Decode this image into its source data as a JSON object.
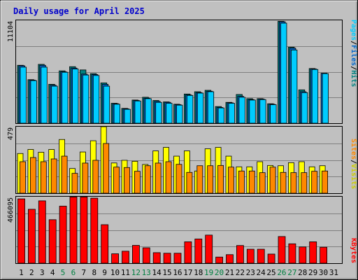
{
  "title": "Daily usage for April 2025",
  "colors": {
    "background": "#c0c0c0",
    "title": "#0000cc",
    "pages": "#00ccff",
    "files": "#0066cc",
    "hits": "#008080",
    "sites": "#ff8800",
    "visits": "#ffff00",
    "kbytes": "#ff0000",
    "weekend": "#008040",
    "weekday": "#000000"
  },
  "legend": {
    "top": [
      {
        "text": "Pages",
        "color": "#00ccff"
      },
      {
        "text": "/",
        "color": "#000000"
      },
      {
        "text": "Files",
        "color": "#0066cc"
      },
      {
        "text": "/",
        "color": "#000000"
      },
      {
        "text": "Hits",
        "color": "#008080"
      }
    ],
    "middle": [
      {
        "text": "Sites",
        "color": "#ff8800"
      },
      {
        "text": "/",
        "color": "#000000"
      },
      {
        "text": "Visits",
        "color": "#cccc00"
      }
    ],
    "bottom": [
      {
        "text": "KBytes",
        "color": "#ff0000"
      }
    ]
  },
  "chart_data": [
    {
      "type": "bar",
      "title": "Daily usage for April 2025",
      "panel": "top",
      "ymax_label": "11104",
      "ylim": [
        0,
        11104
      ],
      "categories": [
        "1",
        "2",
        "3",
        "4",
        "5",
        "6",
        "7",
        "8",
        "9",
        "10",
        "11",
        "12",
        "13",
        "14",
        "15",
        "16",
        "17",
        "18",
        "19",
        "20",
        "21",
        "22",
        "23",
        "24",
        "25",
        "26",
        "27",
        "28",
        "29",
        "30",
        "31"
      ],
      "weekend_days": [
        "5",
        "6",
        "12",
        "13",
        "19",
        "20",
        "26",
        "27"
      ],
      "series": [
        {
          "name": "Hits",
          "values": [
            6250,
            4700,
            6350,
            4200,
            5650,
            6100,
            5750,
            5350,
            4350,
            2150,
            1600,
            2500,
            2800,
            2450,
            2300,
            2050,
            3150,
            3400,
            3550,
            1800,
            2250,
            3100,
            2650,
            2650,
            2100,
            11000,
            8200,
            3600,
            5900,
            0,
            0
          ]
        },
        {
          "name": "Files",
          "values": [
            6200,
            4650,
            6250,
            4100,
            5550,
            5950,
            5300,
            5250,
            4200,
            2100,
            1550,
            2450,
            2700,
            2350,
            2250,
            2000,
            3050,
            3300,
            3450,
            1700,
            2200,
            2900,
            2550,
            2600,
            2050,
            10950,
            8100,
            3400,
            5850,
            5400,
            0
          ]
        },
        {
          "name": "Pages",
          "values": [
            6050,
            4600,
            6050,
            4000,
            5500,
            5850,
            5200,
            5150,
            4000,
            2050,
            1500,
            2400,
            2650,
            2250,
            2150,
            1950,
            3000,
            3250,
            3400,
            1650,
            2150,
            2800,
            2500,
            2550,
            2000,
            10800,
            7900,
            3300,
            5800,
            5350,
            0
          ]
        }
      ]
    },
    {
      "type": "bar",
      "panel": "middle",
      "ymax_label": "479",
      "ylim": [
        0,
        479
      ],
      "categories": [
        "1",
        "2",
        "3",
        "4",
        "5",
        "6",
        "7",
        "8",
        "9",
        "10",
        "11",
        "12",
        "13",
        "14",
        "15",
        "16",
        "17",
        "18",
        "19",
        "20",
        "21",
        "22",
        "23",
        "24",
        "25",
        "26",
        "27",
        "28",
        "29",
        "30",
        "31"
      ],
      "series": [
        {
          "name": "Visits",
          "values": [
            286,
            315,
            295,
            315,
            387,
            178,
            297,
            378,
            479,
            218,
            237,
            230,
            207,
            305,
            330,
            267,
            305,
            160,
            320,
            330,
            267,
            190,
            190,
            227,
            200,
            198,
            220,
            227,
            190,
            198,
            0
          ]
        },
        {
          "name": "Sites",
          "values": [
            227,
            257,
            227,
            247,
            267,
            143,
            217,
            237,
            358,
            188,
            185,
            158,
            198,
            217,
            227,
            208,
            150,
            198,
            198,
            200,
            188,
            160,
            160,
            148,
            188,
            150,
            148,
            148,
            158,
            160,
            0
          ]
        }
      ]
    },
    {
      "type": "bar",
      "panel": "bottom",
      "ymax_label": "466095",
      "ylim": [
        0,
        466095
      ],
      "categories": [
        "1",
        "2",
        "3",
        "4",
        "5",
        "6",
        "7",
        "8",
        "9",
        "10",
        "11",
        "12",
        "13",
        "14",
        "15",
        "16",
        "17",
        "18",
        "19",
        "20",
        "21",
        "22",
        "23",
        "24",
        "25",
        "26",
        "27",
        "28",
        "29",
        "30",
        "31"
      ],
      "series": [
        {
          "name": "KBytes",
          "values": [
            451000,
            378000,
            437000,
            305000,
            400000,
            464000,
            464000,
            456000,
            270000,
            66000,
            84000,
            125000,
            108000,
            74000,
            70000,
            70000,
            150000,
            170000,
            197000,
            43000,
            60000,
            124000,
            98000,
            98000,
            64000,
            187000,
            136000,
            114000,
            150000,
            112000,
            0
          ]
        }
      ]
    }
  ]
}
